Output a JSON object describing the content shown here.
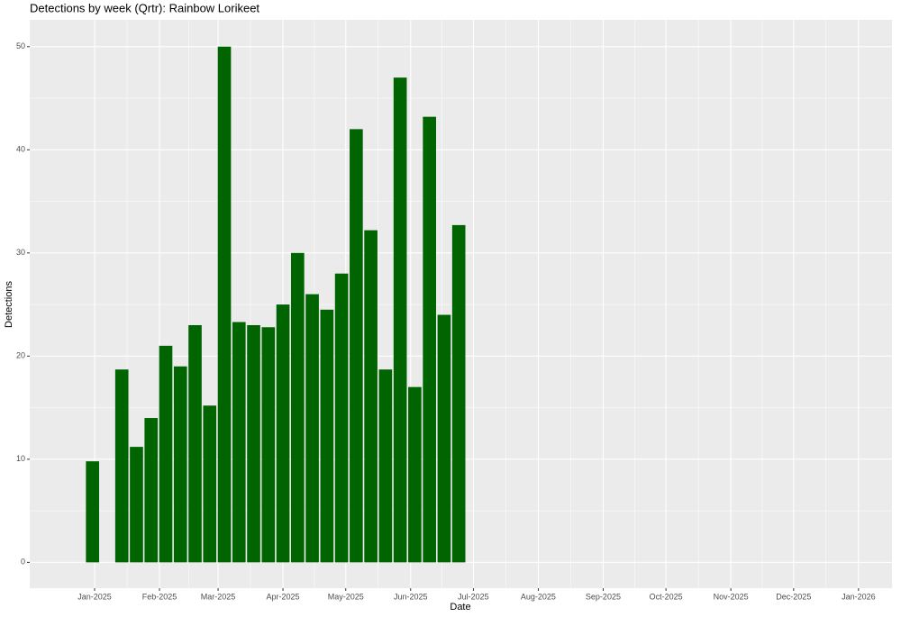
{
  "chart_data": {
    "type": "bar",
    "title": "Detections by week (Qrtr): Rainbow Lorikeet",
    "x_label": "Date",
    "y_label": "Detections",
    "x": [
      "2024-12-31",
      "2025-01-07",
      "2025-01-14",
      "2025-01-21",
      "2025-01-28",
      "2025-02-04",
      "2025-02-11",
      "2025-02-18",
      "2025-02-25",
      "2025-03-04",
      "2025-03-11",
      "2025-03-18",
      "2025-03-25",
      "2025-04-01",
      "2025-04-08",
      "2025-04-15",
      "2025-04-22",
      "2025-04-29",
      "2025-05-06",
      "2025-05-13",
      "2025-05-20",
      "2025-05-27",
      "2025-06-03",
      "2025-06-10",
      "2025-06-17",
      "2025-06-24"
    ],
    "values": [
      9.8,
      null,
      18.7,
      11.2,
      14,
      21,
      19,
      23,
      15.2,
      50,
      23.3,
      23,
      22.8,
      25,
      30,
      26,
      24.5,
      28,
      42,
      32.2,
      18.7,
      47,
      17,
      43.2,
      24,
      32.7
    ],
    "color": "#006400",
    "xlim": [
      "2024-12-01",
      "2026-01-17"
    ],
    "xticks": [
      {
        "value": "2025-01-01",
        "label": "Jan-2025"
      },
      {
        "value": "2025-02-01",
        "label": "Feb-2025"
      },
      {
        "value": "2025-03-01",
        "label": "Mar-2025"
      },
      {
        "value": "2025-04-01",
        "label": "Apr-2025"
      },
      {
        "value": "2025-05-01",
        "label": "May-2025"
      },
      {
        "value": "2025-06-01",
        "label": "Jun-2025"
      },
      {
        "value": "2025-07-01",
        "label": "Jul-2025"
      },
      {
        "value": "2025-08-01",
        "label": "Aug-2025"
      },
      {
        "value": "2025-09-01",
        "label": "Sep-2025"
      },
      {
        "value": "2025-10-01",
        "label": "Oct-2025"
      },
      {
        "value": "2025-11-01",
        "label": "Nov-2025"
      },
      {
        "value": "2025-12-01",
        "label": "Dec-2025"
      },
      {
        "value": "2026-01-01",
        "label": "Jan-2026"
      }
    ],
    "ylim": [
      -2.5,
      52.6
    ],
    "yticks": [
      0,
      10,
      20,
      30,
      40,
      50
    ],
    "grid": true
  }
}
